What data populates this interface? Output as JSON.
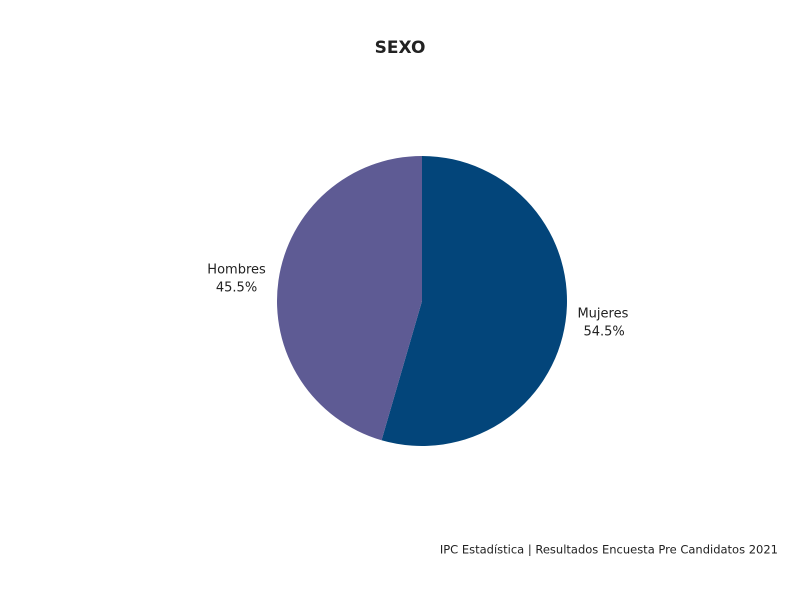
{
  "chart_data": {
    "type": "pie",
    "title": "SEXO",
    "categories": [
      "Mujeres",
      "Hombres"
    ],
    "values": [
      54.5,
      45.5
    ],
    "value_labels": [
      "54.5%",
      "45.5%"
    ],
    "colors": [
      "#03457a",
      "#5e5b94"
    ],
    "source": "IPC Estadística | Resultados Encuesta Pre Candidatos 2021"
  }
}
